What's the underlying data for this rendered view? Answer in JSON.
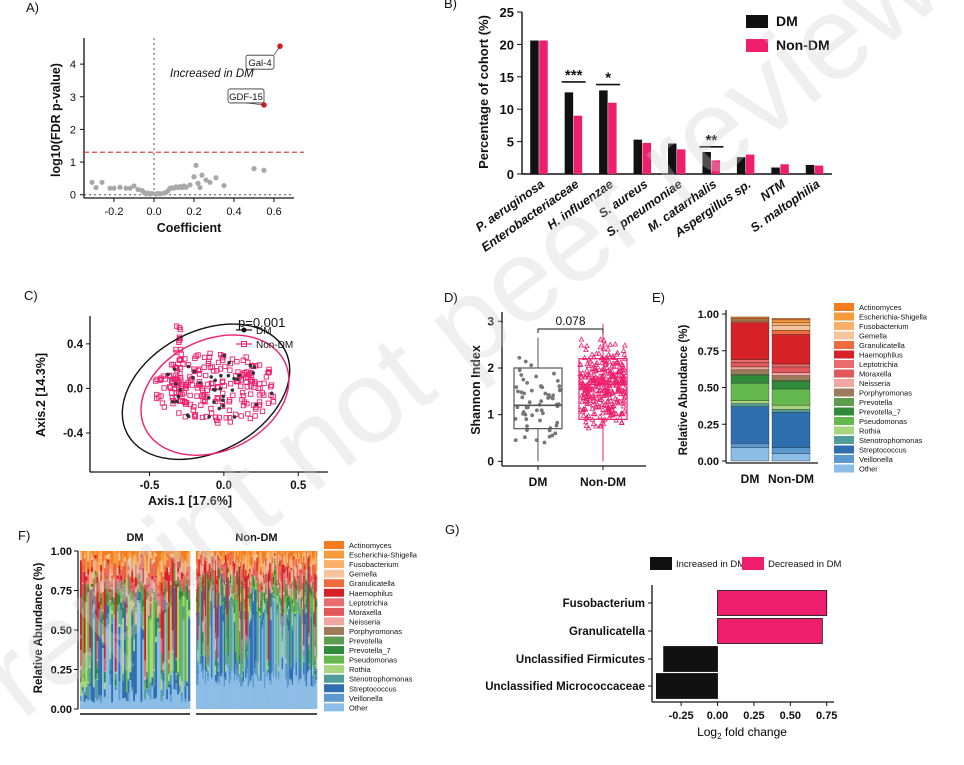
{
  "watermark": "Preprint not peer reviewed",
  "palette": {
    "dm": "#111111",
    "nondm": "#ef1f6e",
    "grey_point": "#a8a8a8",
    "red_point": "#e01a24",
    "red_dash": "#e0473f"
  },
  "taxa_colors": [
    "#f47b20",
    "#f79a3c",
    "#fbb06a",
    "#f6c49c",
    "#ee6b3e",
    "#d62227",
    "#e86c6c",
    "#e2575a",
    "#f2a6a0",
    "#9c7a5a",
    "#5e9c4f",
    "#2f8a3a",
    "#64b84d",
    "#a7d67e",
    "#4f9c9a",
    "#2f6fb0",
    "#5b99cf",
    "#8cbde6"
  ],
  "chart_data": [
    {
      "panel": "A",
      "type": "scatter",
      "panel_label": "A)",
      "xlabel": "Coefficient",
      "ylabel": "log10(FDR p-value)",
      "xlim": [
        -0.35,
        0.7
      ],
      "ylim": [
        -0.1,
        4.8
      ],
      "xticks": [
        -0.2,
        0.0,
        0.2,
        0.4,
        0.6
      ],
      "xtick_labels": [
        "-0.2",
        "0.0",
        "0.2",
        "0.4",
        "0.6"
      ],
      "yticks": [
        0,
        1,
        2,
        3,
        4
      ],
      "threshold_y": 1.3,
      "annotation": "Increased in DM",
      "points": [
        [
          -0.31,
          0.38
        ],
        [
          -0.29,
          0.22
        ],
        [
          -0.26,
          0.38
        ],
        [
          -0.22,
          0.2
        ],
        [
          -0.2,
          0.2
        ],
        [
          -0.17,
          0.23
        ],
        [
          -0.14,
          0.2
        ],
        [
          -0.12,
          0.2
        ],
        [
          -0.1,
          0.27
        ],
        [
          -0.08,
          0.16
        ],
        [
          -0.06,
          0.13
        ],
        [
          -0.05,
          0.07
        ],
        [
          -0.04,
          0.03
        ],
        [
          -0.03,
          0.05
        ],
        [
          -0.02,
          0.02
        ],
        [
          -0.01,
          0.04
        ],
        [
          0.01,
          0.02
        ],
        [
          0.02,
          0.04
        ],
        [
          0.03,
          0.03
        ],
        [
          0.05,
          0.05
        ],
        [
          0.06,
          0.07
        ],
        [
          0.07,
          0.12
        ],
        [
          0.08,
          0.2
        ],
        [
          0.09,
          0.21
        ],
        [
          0.1,
          0.2
        ],
        [
          0.11,
          0.24
        ],
        [
          0.12,
          0.22
        ],
        [
          0.13,
          0.25
        ],
        [
          0.14,
          0.22
        ],
        [
          0.15,
          0.27
        ],
        [
          0.16,
          0.23
        ],
        [
          0.18,
          0.3
        ],
        [
          0.2,
          0.55
        ],
        [
          0.21,
          0.9
        ],
        [
          0.22,
          0.35
        ],
        [
          0.23,
          0.22
        ],
        [
          0.24,
          0.6
        ],
        [
          0.26,
          0.45
        ],
        [
          0.28,
          0.38
        ],
        [
          0.31,
          0.52
        ],
        [
          0.35,
          0.28
        ],
        [
          0.5,
          0.8
        ],
        [
          0.55,
          0.75
        ]
      ],
      "highlight": [
        {
          "label": "Gal-4",
          "x": 0.63,
          "y": 4.55
        },
        {
          "label": "GDF-15",
          "x": 0.55,
          "y": 2.75
        }
      ]
    },
    {
      "panel": "B",
      "type": "bar",
      "panel_label": "B)",
      "ylabel": "Percentage of cohort (%)",
      "ylim": [
        0,
        25
      ],
      "yticks": [
        0,
        5,
        10,
        15,
        20,
        25
      ],
      "categories": [
        "P. aeruginosa",
        "Enterobacteriaceae",
        "H. influenzae",
        "S. aureus",
        "S. pneumoniae",
        "M. catarrhalis",
        "Aspergillus sp.",
        "NTM",
        "S. maltophilia"
      ],
      "series": [
        {
          "name": "DM",
          "values": [
            20.6,
            12.6,
            12.9,
            5.3,
            4.7,
            3.4,
            2.6,
            1.0,
            1.4
          ]
        },
        {
          "name": "Non-DM",
          "values": [
            20.6,
            9.0,
            11.0,
            4.8,
            3.8,
            2.1,
            3.0,
            1.5,
            1.3
          ]
        }
      ],
      "significance": [
        {
          "category": "Enterobacteriaceae",
          "label": "***",
          "y": 14.2
        },
        {
          "category": "H. influenzae",
          "label": "*",
          "y": 13.8
        },
        {
          "category": "M. catarrhalis",
          "label": "**",
          "y": 4.2
        }
      ]
    },
    {
      "panel": "C",
      "type": "scatter",
      "panel_label": "C)",
      "xlabel": "Axis.1   [17.6%]",
      "ylabel": "Axis.2   [14.3%]",
      "xlim": [
        -0.9,
        0.7
      ],
      "ylim": [
        -0.75,
        0.65
      ],
      "xticks": [
        -0.5,
        0.0,
        0.5
      ],
      "xtick_labels": [
        "-0.5",
        "0.0",
        "0.5"
      ],
      "yticks": [
        -0.4,
        0.0,
        0.4
      ],
      "ytick_labels": [
        "-0.4",
        "0.0",
        "0.4"
      ],
      "stat_label": "p=0.001",
      "legend": [
        "DM",
        "Non-DM"
      ],
      "ellipses": [
        {
          "group": "DM",
          "cx": -0.12,
          "cy": -0.03,
          "rx": 0.6,
          "ry": 0.54,
          "angle_deg": -28
        },
        {
          "group": "Non-DM",
          "cx": -0.06,
          "cy": -0.06,
          "rx": 0.52,
          "ry": 0.5,
          "angle_deg": -25
        }
      ],
      "cloud": {
        "cx": -0.05,
        "cy": 0.0,
        "rx": 0.42,
        "ry": 0.34,
        "n": 220,
        "arm_x": -0.3,
        "arm_y_top": 0.56,
        "arm_y_bottom": -0.05
      }
    },
    {
      "panel": "D",
      "type": "box",
      "panel_label": "D)",
      "ylabel": "Shannon Index",
      "ylim": [
        -0.1,
        3.2
      ],
      "yticks": [
        0,
        1,
        2,
        3
      ],
      "categories": [
        "DM",
        "Non-DM"
      ],
      "boxes": [
        {
          "name": "DM",
          "min": 0.0,
          "q1": 0.7,
          "median": 1.2,
          "q3": 2.0,
          "max": 2.65,
          "n": 60
        },
        {
          "name": "Non-DM",
          "min": 0.0,
          "q1": 0.9,
          "median": 1.65,
          "q3": 2.2,
          "max": 2.95,
          "n": 340
        }
      ],
      "p_value": "0.078"
    },
    {
      "panel": "E",
      "type": "bar",
      "stacked": true,
      "panel_label": "E)",
      "ylabel": "Relative Abundance (%)",
      "ylim": [
        0,
        1
      ],
      "yticks": [
        0.0,
        0.25,
        0.5,
        0.75,
        1.0
      ],
      "ytick_labels": [
        "0.00",
        "0.25",
        "0.50",
        "0.75",
        "1.00"
      ],
      "categories": [
        "DM",
        "Non-DM"
      ],
      "taxa": [
        "Actinomyces",
        "Escherichia-Shigella",
        "Fusobacterium",
        "Gemella",
        "Granulicatella",
        "Haemophilus",
        "Leptotrichia",
        "Moraxella",
        "Neisseria",
        "Porphyromonas",
        "Prevotella",
        "Prevotella_7",
        "Pseudomonas",
        "Rothia",
        "Stenotrophomonas",
        "Streptococcus",
        "Veillonella",
        "Other"
      ],
      "values": {
        "DM": [
          0.01,
          0.005,
          0.01,
          0.005,
          0.01,
          0.25,
          0.02,
          0.03,
          0.02,
          0.03,
          0.01,
          0.05,
          0.12,
          0.02,
          0.02,
          0.25,
          0.03,
          0.09
        ],
        "Non-DM": [
          0.01,
          0.02,
          0.02,
          0.03,
          0.03,
          0.2,
          0.02,
          0.04,
          0.02,
          0.03,
          0.01,
          0.05,
          0.11,
          0.03,
          0.02,
          0.24,
          0.04,
          0.05
        ]
      }
    },
    {
      "panel": "F",
      "type": "bar",
      "stacked": true,
      "panel_label": "F)",
      "ylabel": "Relative Abundance (%)",
      "ylim": [
        0,
        1
      ],
      "yticks": [
        0.0,
        0.25,
        0.5,
        0.75,
        1.0
      ],
      "ytick_labels": [
        "0.00",
        "0.25",
        "0.50",
        "0.75",
        "1.00"
      ],
      "groups": [
        {
          "name": "DM",
          "n": 60
        },
        {
          "name": "Non-DM",
          "n": 96
        }
      ],
      "taxa": [
        "Actinomyces",
        "Escherichia-Shigella",
        "Fusobacterium",
        "Gemella",
        "Granulicatella",
        "Haemophilus",
        "Leptotrichia",
        "Moraxella",
        "Neisseria",
        "Porphyromonas",
        "Prevotella",
        "Prevotella_7",
        "Pseudomonas",
        "Rothia",
        "Stenotrophomonas",
        "Streptococcus",
        "Veillonella",
        "Other"
      ]
    },
    {
      "panel": "G",
      "type": "bar",
      "orientation": "horizontal",
      "panel_label": "G)",
      "xlabel_prefix": "Log",
      "xlabel_sub": "2",
      "xlabel_suffix": " fold change",
      "xlim": [
        -0.45,
        0.8
      ],
      "xticks": [
        -0.25,
        0.0,
        0.25,
        0.5,
        0.75
      ],
      "xtick_labels": [
        "-0.25",
        "0.00",
        "0.25",
        "0.50",
        "0.75"
      ],
      "legend": [
        "Increased in DM",
        "Decreased in DM"
      ],
      "categories": [
        "Fusobacterium",
        "Granulicatella",
        "Unclassified Firmicutes",
        "Unclassified Micrococcaceae"
      ],
      "values": [
        0.75,
        0.72,
        -0.37,
        -0.42
      ]
    }
  ]
}
